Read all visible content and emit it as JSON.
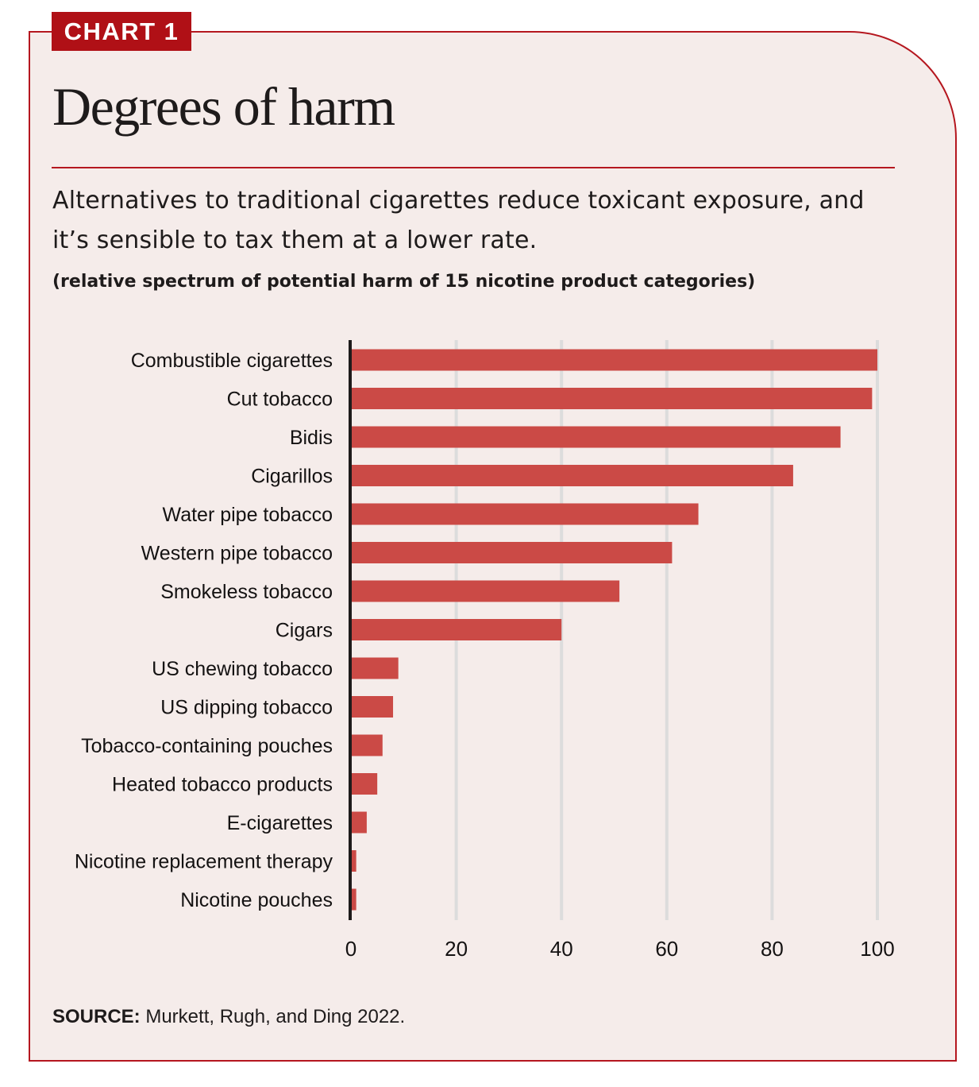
{
  "badge": "CHART 1",
  "title": "Degrees of harm",
  "subtitle": "Alternatives to traditional cigarettes reduce toxicant exposure, and it’s sensible to tax them at a lower rate.",
  "note": "(relative spectrum of potential harm of 15 nicotine product categories)",
  "source": {
    "label": "SOURCE:",
    "text": " Murkett, Rugh, and Ding 2022."
  },
  "colors": {
    "bar": "#cb4a46",
    "accent": "#b01016",
    "background": "#f5ecea",
    "grid": "#dcdcdc",
    "axis": "#1e1b1b"
  },
  "chart_data": {
    "type": "bar",
    "orientation": "horizontal",
    "title": "Degrees of harm",
    "subtitle": "(relative spectrum of potential harm of 15 nicotine product categories)",
    "xlabel": "",
    "ylabel": "",
    "xlim": [
      0,
      100
    ],
    "xticks": [
      0,
      20,
      40,
      60,
      80,
      100
    ],
    "grid": true,
    "legend": "none",
    "categories": [
      "Combustible cigarettes",
      "Cut tobacco",
      "Bidis",
      "Cigarillos",
      "Water pipe tobacco",
      "Western pipe tobacco",
      "Smokeless tobacco",
      "Cigars",
      "US chewing tobacco",
      "US dipping tobacco",
      "Tobacco-containing pouches",
      "Heated tobacco products",
      "E-cigarettes",
      "Nicotine replacement therapy",
      "Nicotine pouches"
    ],
    "values": [
      100,
      99,
      93,
      84,
      66,
      61,
      51,
      40,
      9,
      8,
      6,
      5,
      3,
      1,
      1
    ]
  }
}
